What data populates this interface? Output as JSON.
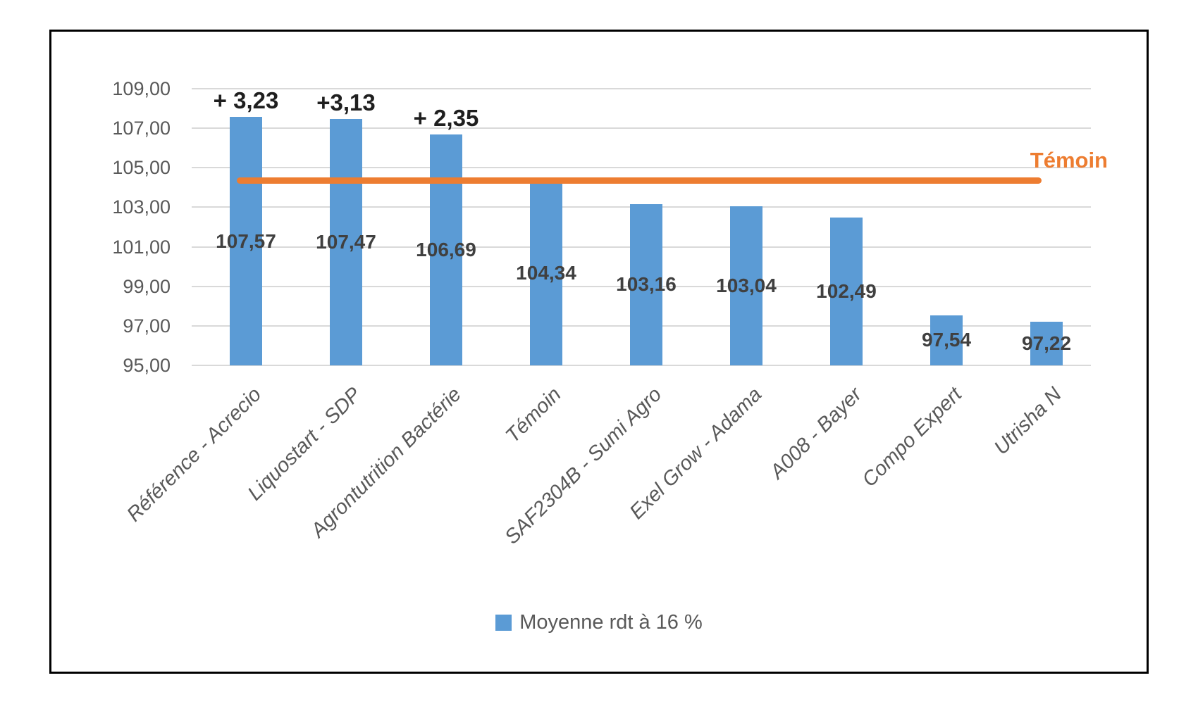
{
  "chart_data": {
    "type": "bar",
    "title": "",
    "categories": [
      "Référence - Acrecio",
      "Liquostart - SDP",
      "Agrontutrition Bactérie",
      "Témoin",
      "SAF2304B - Sumi Agro",
      "Exel Grow - Adama",
      "A008 - Bayer",
      "Compo Expert",
      "Utrisha N"
    ],
    "values": [
      107.57,
      107.47,
      106.69,
      104.34,
      103.16,
      103.04,
      102.49,
      97.54,
      97.22
    ],
    "data_labels": [
      "107,57",
      "107,47",
      "106,69",
      "104,34",
      "103,16",
      "103,04",
      "102,49",
      "97,54",
      "97,22"
    ],
    "annotations": [
      {
        "bar_index": 0,
        "text": "+ 3,23"
      },
      {
        "bar_index": 1,
        "text": "+3,13"
      },
      {
        "bar_index": 2,
        "text": "+ 2,35"
      }
    ],
    "reference_line": {
      "label": "Témoin",
      "value": 104.34
    },
    "y_axis": {
      "tick_labels": [
        "109,00",
        "107,00",
        "105,00",
        "103,00",
        "101,00",
        "99,00",
        "97,00",
        "95,00"
      ],
      "tick_values": [
        109,
        107,
        105,
        103,
        101,
        99,
        97,
        95
      ],
      "ylim": [
        95,
        109
      ]
    },
    "legend": {
      "label": "Moyenne rdt à 16 %",
      "position": "bottom"
    },
    "grid": true,
    "xlabel": "",
    "ylabel": "",
    "colors": {
      "bar": "#5B9BD5",
      "reference_line": "#ED7D31",
      "reference_label": "#ED7D31",
      "data_label": "#404040",
      "annotation": "#1f1f1f",
      "axis_text": "#595959",
      "category_text": "#595959",
      "legend_text": "#595959",
      "gridline": "#D9D9D9",
      "frame_border": "#000000"
    }
  }
}
